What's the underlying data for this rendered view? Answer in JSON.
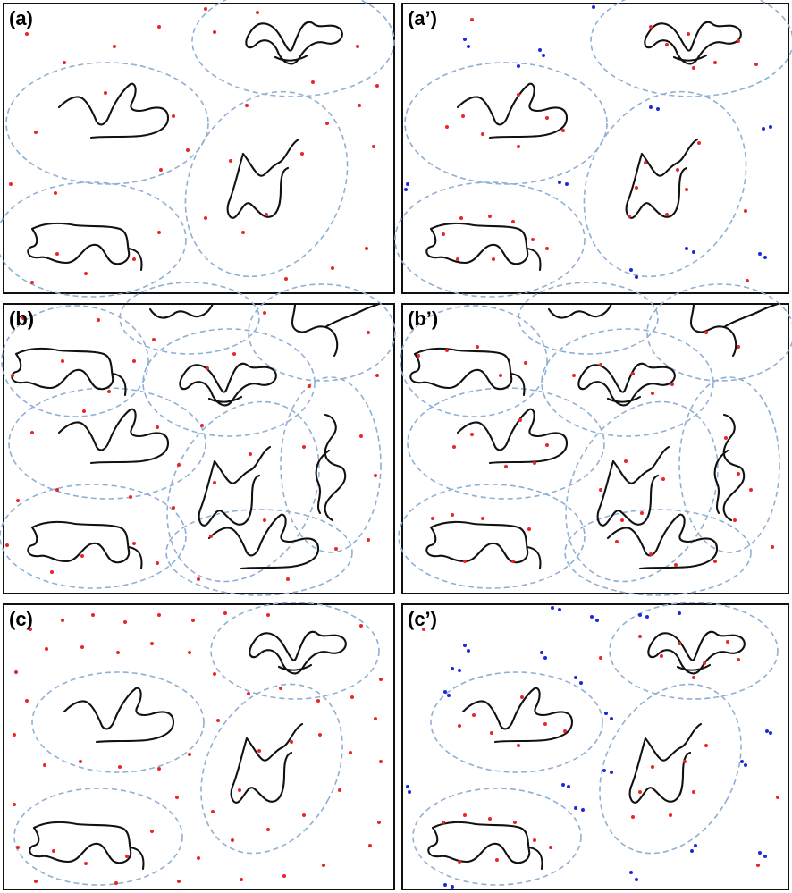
{
  "figure": {
    "colors": {
      "frame": "#111111",
      "chain": "#111111",
      "domain_outline": "#8fb0d4",
      "red_particle": "#e8262a",
      "blue_particle": "#1c2ad8"
    },
    "panels": [
      {
        "id": "a",
        "label": "(a)",
        "domains": "sparse",
        "red": "sparse",
        "blue": false
      },
      {
        "id": "a2",
        "label": "(a’)",
        "domains": "sparse",
        "red": "adsorbed",
        "blue": true
      },
      {
        "id": "b",
        "label": "(b)",
        "domains": "dense",
        "red": "sparse",
        "blue": false
      },
      {
        "id": "b2",
        "label": "(b’)",
        "domains": "dense",
        "red": "adsorbed",
        "blue": false
      },
      {
        "id": "c",
        "label": "(c)",
        "domains": "sparse",
        "red": "dense",
        "blue": false
      },
      {
        "id": "c2",
        "label": "(c’)",
        "domains": "sparse",
        "red": "adsorbed",
        "blue": true
      }
    ]
  }
}
